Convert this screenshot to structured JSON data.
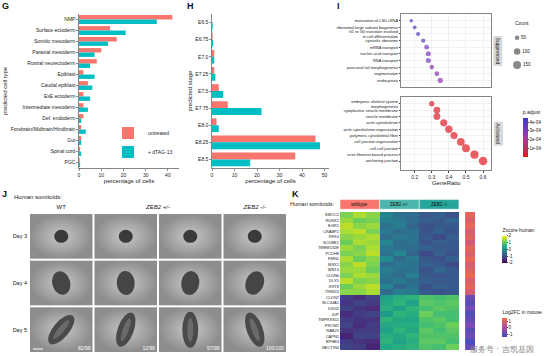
{
  "chart_data": [
    {
      "label": "G",
      "type": "bar",
      "orientation": "horizontal",
      "categories": [
        "NMP",
        "Surface ectoderm",
        "Somitic mesoderm",
        "Paraxial mesoderm",
        "Rostral neurectoderm",
        "Epiblast",
        "Caudal epiblast",
        "ExE ectoderm",
        "Intermediate mesoderm",
        "Def. endoderm",
        "Forebrain/Midbrain/Hindbrain",
        "Gut",
        "Spinal cord",
        "PGC"
      ],
      "series": [
        {
          "name": "untreated",
          "color": "#f8766d",
          "values": [
            42,
            14,
            17,
            10,
            8,
            2,
            4,
            2,
            2,
            2,
            1,
            1,
            0.5,
            0.3
          ]
        },
        {
          "name": "+ dTAG-13",
          "color": "#00bfc4",
          "values": [
            35,
            21,
            13,
            7,
            5,
            7,
            6,
            5,
            4,
            1,
            3,
            1,
            1,
            0.5
          ]
        }
      ],
      "x_label": "percentage of cells",
      "y_label": "predicted cell type",
      "xlim": [
        0,
        45
      ],
      "xticks": [
        0,
        10,
        20,
        30,
        40
      ],
      "legend": "bottom right",
      "grid": false
    },
    {
      "label": "H",
      "type": "bar",
      "orientation": "horizontal",
      "categories": [
        "E6.5",
        "E6.75",
        "E7.0",
        "E7.25",
        "E7.5",
        "E7.75",
        "E8.0",
        "E8.25",
        "E8.5"
      ],
      "series": [
        {
          "name": "untreated",
          "color": "#f8766d",
          "values": [
            0,
            0.3,
            1,
            1,
            3,
            7,
            2,
            46,
            37
          ]
        },
        {
          "name": "+ dTAG-13",
          "color": "#00bfc4",
          "values": [
            0.3,
            0.5,
            1,
            1.5,
            5,
            22,
            3,
            48,
            17
          ]
        }
      ],
      "x_label": "percentage of cells",
      "y_label": "predicted stage",
      "xlim": [
        0,
        52
      ],
      "xticks": [
        0,
        10,
        20,
        30,
        40,
        50
      ],
      "grid": false
    },
    {
      "label": "I",
      "type": "scatter",
      "marker": "circle",
      "grid": true,
      "x_label": "GeneRatio",
      "xlim": [
        0.12,
        0.65
      ],
      "xticks": [
        0.2,
        0.3,
        0.4,
        0.5,
        0.6
      ],
      "facets": [
        {
          "name": "Suppressed",
          "terms": [
            "maturation of LSU-rRNA",
            "ribosomal large subunit biogenesis",
            "G1 to G0 transition involved\nin cell differentiation",
            "cytosolic ribosome",
            "mRNA transport",
            "nucleic acid transport",
            "RNA transport",
            "post-anal tail morphogenesis",
            "segmentation",
            "endocytosis"
          ],
          "gene_ratio": [
            0.18,
            0.2,
            0.22,
            0.25,
            0.27,
            0.28,
            0.28,
            0.3,
            0.33,
            0.35
          ],
          "count": [
            30,
            35,
            40,
            45,
            55,
            60,
            60,
            50,
            55,
            65
          ],
          "p_adjust": [
            0.00042,
            0.0004,
            0.00039,
            0.00036,
            0.00033,
            0.00032,
            0.00032,
            0.0003,
            0.00028,
            0.00026
          ]
        },
        {
          "name": "Activated",
          "terms": [
            "embryonic skeletal system\nmorphogenesis",
            "cytoplasmic vesicle membrane",
            "vesicle membrane",
            "actin cytoskeleton",
            "actin cytoskeleton organization",
            "polymeric cytoskeletal fiber",
            "cell junction organization",
            "cell-cell junction",
            "actin filament-based process",
            "anchoring junction"
          ],
          "gene_ratio": [
            0.3,
            0.33,
            0.33,
            0.37,
            0.4,
            0.43,
            0.47,
            0.5,
            0.55,
            0.6
          ],
          "count": [
            70,
            110,
            110,
            120,
            130,
            120,
            140,
            150,
            160,
            170
          ],
          "p_adjust": [
            4e-05,
            3e-05,
            3e-05,
            2e-05,
            2e-05,
            2e-05,
            1e-05,
            1e-05,
            1e-05,
            1e-05
          ]
        }
      ],
      "size_legend": {
        "title": "Count",
        "values": [
          50,
          100,
          150
        ]
      },
      "color_bar": {
        "title": "p.adjust",
        "range": [
          0,
          0.00045
        ],
        "ticks": [
          {
            "value": 0.0001,
            "label": "1e-04"
          },
          {
            "value": 0.0002,
            "label": "2e-04"
          },
          {
            "value": 0.0003,
            "label": "3e-04"
          },
          {
            "value": 0.0004,
            "label": "4e-04"
          }
        ]
      }
    },
    {
      "label": "K",
      "type": "heatmap",
      "title": "Human somitoids:",
      "tick_labels": "y",
      "groups": [
        {
          "name": "wildtype",
          "color": "#f8766d",
          "columns": 3
        },
        {
          "name": "ZEB2 +/-",
          "color": "#4db6ac",
          "columns": 3
        },
        {
          "name": "ZEB2 -/-",
          "color": "#26a69a",
          "columns": 3
        }
      ],
      "genes": [
        "SMOC2",
        "RUNX2",
        "EGR1",
        "CRABP2",
        "RFX4",
        "SCUBE2",
        "TMEM132E",
        "PCDH8",
        "FMN1",
        "MSX2",
        "WNT4",
        "CLDN6",
        "DLX5",
        "KRT8",
        "TRIM24",
        "CLDN7",
        "SLC44A1",
        "DSG2",
        "JUP",
        "TMPRSS11",
        "PROM2",
        "RAB25",
        "CAPN1",
        "EPHB3",
        "NECTIN4"
      ],
      "cells": [
        [
          1.2,
          1.5,
          1.3,
          -0.2,
          -0.5,
          -0.6,
          -0.9,
          -0.8,
          -1.0
        ],
        [
          1.4,
          1.1,
          1.2,
          -0.3,
          -0.4,
          -0.6,
          -0.8,
          -0.9,
          -0.7
        ],
        [
          1.6,
          1.3,
          1.4,
          -0.5,
          -0.3,
          -0.7,
          -1.0,
          -0.9,
          -0.9
        ],
        [
          1.5,
          1.6,
          1.2,
          -0.4,
          -0.6,
          -0.5,
          -1.0,
          -0.8,
          -1.0
        ],
        [
          1.3,
          1.4,
          1.5,
          -0.6,
          -0.4,
          -0.5,
          -0.9,
          -1.1,
          -0.8
        ],
        [
          1.1,
          1.5,
          1.4,
          -0.2,
          -0.6,
          -0.5,
          -1.0,
          -0.8,
          -0.9
        ],
        [
          1.4,
          1.2,
          1.5,
          -0.4,
          -0.5,
          -0.6,
          -0.8,
          -0.9,
          -0.9
        ],
        [
          1.2,
          1.3,
          1.6,
          -0.5,
          -0.2,
          -0.7,
          -1.1,
          -0.8,
          -1.0
        ],
        [
          1.5,
          1.1,
          1.3,
          -0.1,
          -0.6,
          -0.4,
          -0.9,
          -1.0,
          -0.8
        ],
        [
          1.3,
          1.6,
          1.2,
          -0.6,
          -0.4,
          -0.5,
          -0.8,
          -0.9,
          -1.1
        ],
        [
          1.4,
          1.4,
          1.1,
          -0.3,
          -0.5,
          -0.5,
          -1.0,
          -0.7,
          -0.9
        ],
        [
          1.2,
          1.5,
          1.4,
          -0.4,
          -0.6,
          -0.3,
          -0.9,
          -1.0,
          -0.9
        ],
        [
          1.6,
          1.2,
          1.3,
          -0.5,
          -0.4,
          -0.6,
          -0.8,
          -0.9,
          -0.9
        ],
        [
          1.1,
          1.4,
          1.6,
          -0.2,
          -0.7,
          -0.5,
          -1.0,
          -0.8,
          -0.9
        ],
        [
          1.3,
          1.3,
          1.5,
          -0.6,
          -0.3,
          -0.4,
          -0.9,
          -1.0,
          -0.9
        ],
        [
          -1.3,
          -1.5,
          -1.2,
          0.3,
          0.5,
          0.6,
          0.9,
          0.8,
          0.9
        ],
        [
          -1.4,
          -1.2,
          -1.3,
          0.4,
          0.6,
          0.3,
          1.0,
          0.9,
          1.0
        ],
        [
          -1.2,
          -1.4,
          -1.5,
          0.5,
          0.3,
          0.6,
          0.8,
          1.0,
          0.9
        ],
        [
          -1.5,
          -1.3,
          -1.2,
          0.2,
          0.6,
          0.5,
          1.1,
          0.8,
          0.8
        ],
        [
          -1.3,
          -1.4,
          -1.4,
          0.6,
          0.4,
          0.4,
          0.9,
          1.0,
          0.8
        ],
        [
          -1.2,
          -1.5,
          -1.3,
          0.4,
          0.5,
          0.5,
          0.8,
          0.9,
          1.1
        ],
        [
          -1.4,
          -1.3,
          -1.3,
          0.3,
          0.6,
          0.4,
          1.0,
          0.8,
          1.0
        ],
        [
          -1.6,
          -1.2,
          -1.2,
          0.5,
          0.4,
          0.6,
          0.9,
          0.9,
          0.9
        ],
        [
          -1.3,
          -1.4,
          -1.5,
          0.6,
          0.3,
          0.5,
          1.0,
          1.0,
          0.8
        ],
        [
          -1.2,
          -1.3,
          -1.6,
          0.4,
          0.5,
          0.6,
          0.9,
          0.8,
          1.1
        ]
      ],
      "z_title": "Zscore human",
      "zlim": [
        -2,
        2
      ],
      "zticks": [
        -2,
        -1,
        0,
        1,
        2
      ],
      "side": {
        "title": "Log2FC in mouse",
        "values": [
          1.1,
          0.9,
          1.2,
          0.8,
          1.0,
          0.7,
          1.1,
          0.9,
          1.2,
          0.8,
          1.0,
          1.3,
          0.9,
          1.1,
          0.8,
          -0.9,
          -1.1,
          -0.8,
          -1.2,
          -1.0,
          -0.7,
          -1.1,
          -0.9,
          -1.3,
          -1.0
        ],
        "zlim": [
          -1.5,
          1.5
        ],
        "zticks": [
          -1,
          0,
          1
        ]
      }
    }
  ],
  "panel_j": {
    "label": "J",
    "title": "Human somitoids:",
    "columns": [
      {
        "label": "WT",
        "span": 1
      },
      {
        "label": "ZEB2 +/-",
        "span": 2
      },
      {
        "label": "ZEB2 -/-",
        "span": 1
      }
    ],
    "rows": [
      "Day 3",
      "Day 4",
      "Day 5"
    ],
    "counts": [
      "82/99",
      "12/96",
      "57/99",
      "100/100"
    ]
  },
  "watermark": "服务号 · 吉凯基因"
}
